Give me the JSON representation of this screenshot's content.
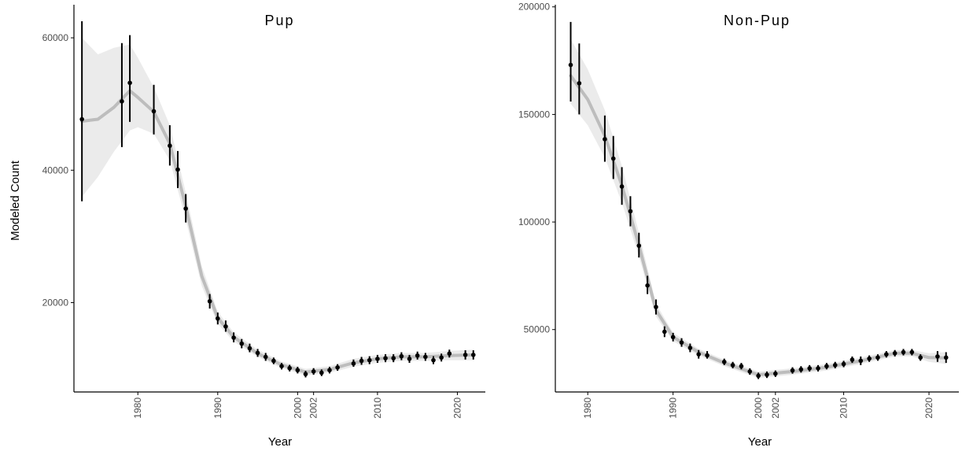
{
  "figure": {
    "ylabel": "Modeled Count",
    "xlabel": "Year"
  },
  "colors": {
    "ribbon": "#ebebeb",
    "trend": "#bdbdbd",
    "points": "#000000",
    "axes": "#000000"
  },
  "chart_data": [
    {
      "type": "scatter",
      "title": "Pup",
      "xlabel": "Year",
      "ylabel": "Modeled Count",
      "xlim": [
        1972,
        2023.5
      ],
      "ylim": [
        6500,
        65000
      ],
      "yticks": [
        20000,
        40000,
        60000
      ],
      "xticks": [
        1980,
        1990,
        2000,
        2002,
        2010,
        2020
      ],
      "grid": false,
      "series": [
        {
          "points": [
            {
              "x": 1973,
              "y": 47700,
              "lo": 35300,
              "hi": 62500
            },
            {
              "x": 1978,
              "y": 50400,
              "lo": 43500,
              "hi": 59200
            },
            {
              "x": 1979,
              "y": 53200,
              "lo": 47300,
              "hi": 60400
            },
            {
              "x": 1982,
              "y": 48900,
              "lo": 45400,
              "hi": 52900
            },
            {
              "x": 1984,
              "y": 43700,
              "lo": 40700,
              "hi": 46800
            },
            {
              "x": 1985,
              "y": 40100,
              "lo": 37300,
              "hi": 42900
            },
            {
              "x": 1986,
              "y": 34200,
              "lo": 32100,
              "hi": 36400
            },
            {
              "x": 1989,
              "y": 20200,
              "lo": 19100,
              "hi": 21300
            },
            {
              "x": 1990,
              "y": 17600,
              "lo": 16700,
              "hi": 18500
            },
            {
              "x": 1991,
              "y": 16400,
              "lo": 15600,
              "hi": 17300
            },
            {
              "x": 1992,
              "y": 14700,
              "lo": 14000,
              "hi": 15500
            },
            {
              "x": 1993,
              "y": 13800,
              "lo": 13100,
              "hi": 14500
            },
            {
              "x": 1994,
              "y": 13100,
              "lo": 12500,
              "hi": 13800
            },
            {
              "x": 1995,
              "y": 12400,
              "lo": 11800,
              "hi": 13000
            },
            {
              "x": 1996,
              "y": 11800,
              "lo": 11200,
              "hi": 12400
            },
            {
              "x": 1997,
              "y": 11200,
              "lo": 10700,
              "hi": 11700
            },
            {
              "x": 1998,
              "y": 10400,
              "lo": 9900,
              "hi": 10900
            },
            {
              "x": 1999,
              "y": 10100,
              "lo": 9600,
              "hi": 10600
            },
            {
              "x": 2000,
              "y": 9800,
              "lo": 9300,
              "hi": 10300
            },
            {
              "x": 2001,
              "y": 9200,
              "lo": 8700,
              "hi": 9700
            },
            {
              "x": 2002,
              "y": 9600,
              "lo": 9100,
              "hi": 10100
            },
            {
              "x": 2003,
              "y": 9400,
              "lo": 8900,
              "hi": 9900
            },
            {
              "x": 2004,
              "y": 9800,
              "lo": 9300,
              "hi": 10300
            },
            {
              "x": 2005,
              "y": 10200,
              "lo": 9700,
              "hi": 10700
            },
            {
              "x": 2007,
              "y": 10800,
              "lo": 10300,
              "hi": 11400
            },
            {
              "x": 2008,
              "y": 11200,
              "lo": 10600,
              "hi": 11800
            },
            {
              "x": 2009,
              "y": 11300,
              "lo": 10700,
              "hi": 11900
            },
            {
              "x": 2010,
              "y": 11500,
              "lo": 10900,
              "hi": 12100
            },
            {
              "x": 2011,
              "y": 11600,
              "lo": 11000,
              "hi": 12200
            },
            {
              "x": 2012,
              "y": 11600,
              "lo": 11000,
              "hi": 12200
            },
            {
              "x": 2013,
              "y": 11900,
              "lo": 11300,
              "hi": 12500
            },
            {
              "x": 2014,
              "y": 11500,
              "lo": 10900,
              "hi": 12100
            },
            {
              "x": 2015,
              "y": 12000,
              "lo": 11400,
              "hi": 12600
            },
            {
              "x": 2016,
              "y": 11800,
              "lo": 11200,
              "hi": 12400
            },
            {
              "x": 2017,
              "y": 11300,
              "lo": 10700,
              "hi": 11900
            },
            {
              "x": 2018,
              "y": 11700,
              "lo": 11100,
              "hi": 12300
            },
            {
              "x": 2019,
              "y": 12300,
              "lo": 11700,
              "hi": 12900
            },
            {
              "x": 2021,
              "y": 12100,
              "lo": 11400,
              "hi": 12800
            },
            {
              "x": 2022,
              "y": 12100,
              "lo": 11400,
              "hi": 12800
            }
          ],
          "trend": [
            {
              "x": 1973,
              "y": 47400,
              "lo": 36000,
              "hi": 60000
            },
            {
              "x": 1975,
              "y": 47700,
              "lo": 39000,
              "hi": 57500
            },
            {
              "x": 1977,
              "y": 49500,
              "lo": 42800,
              "hi": 58500
            },
            {
              "x": 1979,
              "y": 52000,
              "lo": 46000,
              "hi": 59000
            },
            {
              "x": 1980,
              "y": 51000,
              "lo": 46500,
              "hi": 57000
            },
            {
              "x": 1982,
              "y": 48800,
              "lo": 45500,
              "hi": 52500
            },
            {
              "x": 1984,
              "y": 44000,
              "lo": 41500,
              "hi": 46800
            },
            {
              "x": 1986,
              "y": 34500,
              "lo": 32500,
              "hi": 36600
            },
            {
              "x": 1988,
              "y": 24000,
              "lo": 22500,
              "hi": 25500
            },
            {
              "x": 1990,
              "y": 17700,
              "lo": 16800,
              "hi": 18600
            },
            {
              "x": 1992,
              "y": 14800,
              "lo": 14100,
              "hi": 15500
            },
            {
              "x": 1995,
              "y": 12300,
              "lo": 11800,
              "hi": 12900
            },
            {
              "x": 1998,
              "y": 10600,
              "lo": 10100,
              "hi": 11100
            },
            {
              "x": 2001,
              "y": 9500,
              "lo": 9000,
              "hi": 10000
            },
            {
              "x": 2004,
              "y": 9900,
              "lo": 9400,
              "hi": 10400
            },
            {
              "x": 2007,
              "y": 10900,
              "lo": 10300,
              "hi": 11500
            },
            {
              "x": 2010,
              "y": 11500,
              "lo": 10900,
              "hi": 12100
            },
            {
              "x": 2013,
              "y": 11800,
              "lo": 11200,
              "hi": 12400
            },
            {
              "x": 2016,
              "y": 11800,
              "lo": 11200,
              "hi": 12400
            },
            {
              "x": 2019,
              "y": 12000,
              "lo": 11300,
              "hi": 12700
            },
            {
              "x": 2022,
              "y": 12100,
              "lo": 11300,
              "hi": 12900
            }
          ]
        }
      ]
    },
    {
      "type": "scatter",
      "title": "Non-Pup",
      "xlabel": "Year",
      "ylabel": "",
      "xlim": [
        1976.2,
        2023.5
      ],
      "ylim": [
        21000,
        201000
      ],
      "yticks": [
        50000,
        100000,
        150000,
        200000
      ],
      "xticks": [
        1980,
        1990,
        2000,
        2002,
        2010,
        2020
      ],
      "grid": false,
      "series": [
        {
          "points": [
            {
              "x": 1978,
              "y": 173000,
              "lo": 156000,
              "hi": 193000
            },
            {
              "x": 1979,
              "y": 164500,
              "lo": 150000,
              "hi": 183000
            },
            {
              "x": 1982,
              "y": 138500,
              "lo": 128000,
              "hi": 149500
            },
            {
              "x": 1983,
              "y": 129500,
              "lo": 120000,
              "hi": 140000
            },
            {
              "x": 1984,
              "y": 116500,
              "lo": 108000,
              "hi": 125500
            },
            {
              "x": 1985,
              "y": 105000,
              "lo": 98000,
              "hi": 112000
            },
            {
              "x": 1986,
              "y": 89000,
              "lo": 83500,
              "hi": 95000
            },
            {
              "x": 1987,
              "y": 70500,
              "lo": 66500,
              "hi": 75000
            },
            {
              "x": 1988,
              "y": 60500,
              "lo": 57000,
              "hi": 64000
            },
            {
              "x": 1989,
              "y": 49000,
              "lo": 46500,
              "hi": 51500
            },
            {
              "x": 1990,
              "y": 46500,
              "lo": 44500,
              "hi": 48500
            },
            {
              "x": 1991,
              "y": 44000,
              "lo": 42000,
              "hi": 46000
            },
            {
              "x": 1992,
              "y": 41500,
              "lo": 39500,
              "hi": 43500
            },
            {
              "x": 1993,
              "y": 38500,
              "lo": 36500,
              "hi": 40500
            },
            {
              "x": 1994,
              "y": 38000,
              "lo": 36500,
              "hi": 40000
            },
            {
              "x": 1996,
              "y": 35000,
              "lo": 33500,
              "hi": 36500
            },
            {
              "x": 1997,
              "y": 33500,
              "lo": 32000,
              "hi": 35000
            },
            {
              "x": 1998,
              "y": 33000,
              "lo": 31500,
              "hi": 34500
            },
            {
              "x": 1999,
              "y": 30500,
              "lo": 29000,
              "hi": 32000
            },
            {
              "x": 2000,
              "y": 28500,
              "lo": 27000,
              "hi": 30000
            },
            {
              "x": 2001,
              "y": 29000,
              "lo": 27500,
              "hi": 30500
            },
            {
              "x": 2002,
              "y": 29500,
              "lo": 28000,
              "hi": 31000
            },
            {
              "x": 2004,
              "y": 31000,
              "lo": 29500,
              "hi": 32500
            },
            {
              "x": 2005,
              "y": 31500,
              "lo": 30000,
              "hi": 33000
            },
            {
              "x": 2006,
              "y": 32000,
              "lo": 30500,
              "hi": 33500
            },
            {
              "x": 2007,
              "y": 32000,
              "lo": 30500,
              "hi": 33500
            },
            {
              "x": 2008,
              "y": 33000,
              "lo": 31500,
              "hi": 34500
            },
            {
              "x": 2009,
              "y": 33500,
              "lo": 32000,
              "hi": 35000
            },
            {
              "x": 2010,
              "y": 34000,
              "lo": 32500,
              "hi": 35500
            },
            {
              "x": 2011,
              "y": 36000,
              "lo": 34500,
              "hi": 37500
            },
            {
              "x": 2012,
              "y": 35500,
              "lo": 33500,
              "hi": 37500
            },
            {
              "x": 2013,
              "y": 36500,
              "lo": 35000,
              "hi": 38000
            },
            {
              "x": 2014,
              "y": 37000,
              "lo": 35500,
              "hi": 38500
            },
            {
              "x": 2015,
              "y": 38500,
              "lo": 37000,
              "hi": 40000
            },
            {
              "x": 2016,
              "y": 39000,
              "lo": 37500,
              "hi": 40500
            },
            {
              "x": 2017,
              "y": 39500,
              "lo": 38000,
              "hi": 41000
            },
            {
              "x": 2018,
              "y": 39500,
              "lo": 38000,
              "hi": 41000
            },
            {
              "x": 2019,
              "y": 37000,
              "lo": 35500,
              "hi": 38500
            },
            {
              "x": 2021,
              "y": 37500,
              "lo": 35000,
              "hi": 40000
            },
            {
              "x": 2022,
              "y": 37000,
              "lo": 34500,
              "hi": 39500
            }
          ],
          "trend": [
            {
              "x": 1978,
              "y": 168000,
              "lo": 155000,
              "hi": 185000
            },
            {
              "x": 1980,
              "y": 157000,
              "lo": 145000,
              "hi": 171000
            },
            {
              "x": 1982,
              "y": 140000,
              "lo": 130000,
              "hi": 152000
            },
            {
              "x": 1984,
              "y": 117000,
              "lo": 109000,
              "hi": 126000
            },
            {
              "x": 1986,
              "y": 89000,
              "lo": 84000,
              "hi": 95000
            },
            {
              "x": 1988,
              "y": 59000,
              "lo": 56000,
              "hi": 62000
            },
            {
              "x": 1990,
              "y": 46500,
              "lo": 44500,
              "hi": 48500
            },
            {
              "x": 1993,
              "y": 39500,
              "lo": 38000,
              "hi": 41000
            },
            {
              "x": 1996,
              "y": 34500,
              "lo": 33000,
              "hi": 36000
            },
            {
              "x": 2000,
              "y": 29000,
              "lo": 27500,
              "hi": 30500
            },
            {
              "x": 2004,
              "y": 30500,
              "lo": 29000,
              "hi": 32000
            },
            {
              "x": 2008,
              "y": 32500,
              "lo": 31000,
              "hi": 34000
            },
            {
              "x": 2012,
              "y": 35500,
              "lo": 34000,
              "hi": 37000
            },
            {
              "x": 2016,
              "y": 39000,
              "lo": 37500,
              "hi": 40500
            },
            {
              "x": 2018,
              "y": 39000,
              "lo": 37500,
              "hi": 40500
            },
            {
              "x": 2020,
              "y": 37000,
              "lo": 35000,
              "hi": 39000
            },
            {
              "x": 2022,
              "y": 36800,
              "lo": 34000,
              "hi": 39500
            }
          ]
        }
      ]
    }
  ]
}
